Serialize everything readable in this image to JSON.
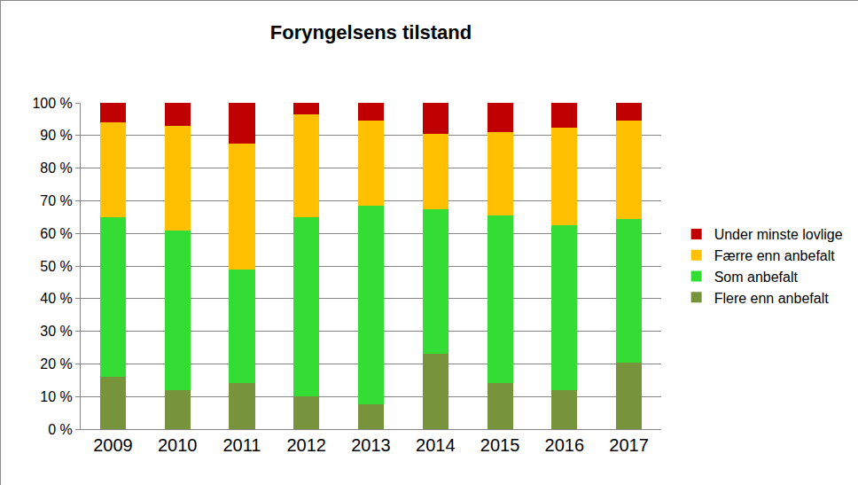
{
  "chart_data": {
    "type": "bar",
    "title": "Foryngelsens tilstand",
    "stacked": true,
    "grid": true,
    "legend": "right",
    "categories": [
      "2009",
      "2010",
      "2011",
      "2012",
      "2013",
      "2014",
      "2015",
      "2016",
      "2017"
    ],
    "series": [
      {
        "name": "Flere enn anbefalt",
        "color": "#77933c",
        "values": [
          16,
          12,
          14,
          10,
          7.5,
          23,
          14,
          12,
          20.5
        ]
      },
      {
        "name": "Som anbefalt",
        "color": "#33dd33",
        "values": [
          49,
          49,
          35,
          55,
          61,
          44.5,
          51.5,
          50.5,
          44
        ]
      },
      {
        "name": "Færre enn anbefalt",
        "color": "#ffc000",
        "values": [
          29,
          32,
          38.5,
          31.5,
          26,
          23,
          25.5,
          30,
          30
        ]
      },
      {
        "name": "Under minste lovlige",
        "color": "#c00000",
        "values": [
          6,
          7,
          12.5,
          3.5,
          5.5,
          9.5,
          9,
          7.5,
          5.5
        ]
      }
    ],
    "ylim": [
      0,
      100
    ],
    "yticks": [
      {
        "value": 0,
        "label": "0 %"
      },
      {
        "value": 10,
        "label": "10 %"
      },
      {
        "value": 20,
        "label": "20 %"
      },
      {
        "value": 30,
        "label": "30 %"
      },
      {
        "value": 40,
        "label": "40 %"
      },
      {
        "value": 50,
        "label": "50 %"
      },
      {
        "value": 60,
        "label": "60 %"
      },
      {
        "value": 70,
        "label": "70 %"
      },
      {
        "value": 80,
        "label": "80 %"
      },
      {
        "value": 90,
        "label": "90 %"
      },
      {
        "value": 100,
        "label": "100 %"
      }
    ]
  }
}
